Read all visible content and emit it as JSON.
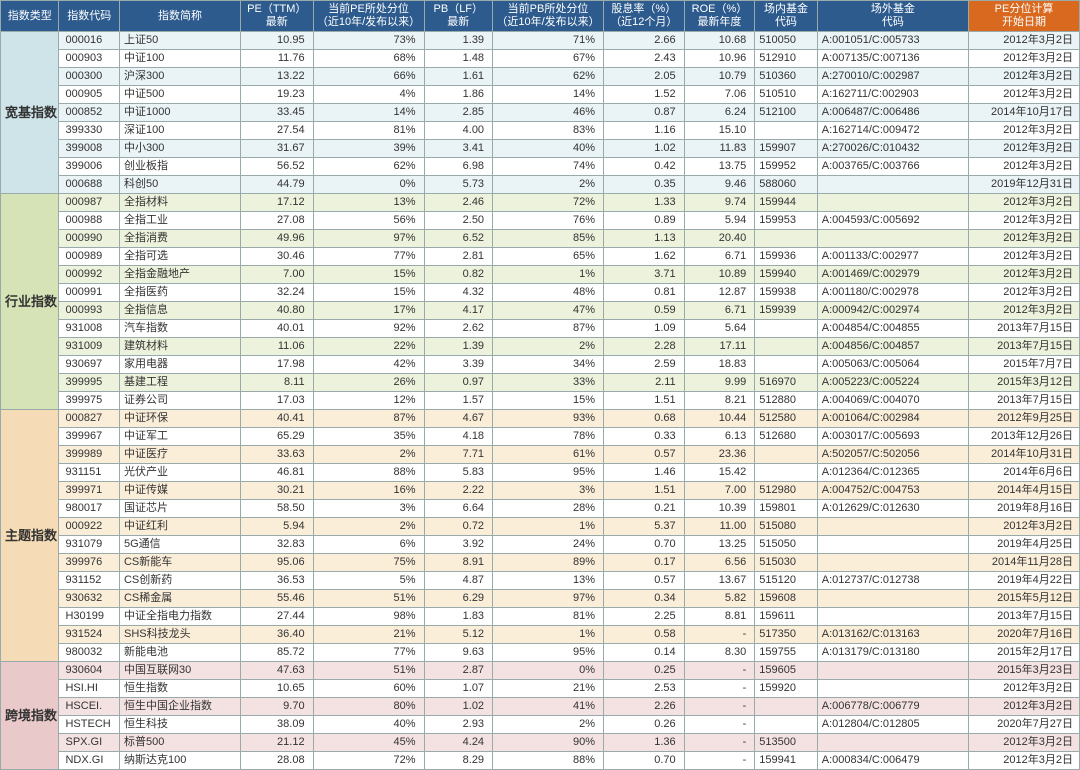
{
  "header": {
    "labels": [
      "指数类型",
      "指数代码",
      "指数简称",
      "PE（TTM）\n最新",
      "当前PE所处分位\n（近10年/发布以来）",
      "PB（LF）\n最新",
      "当前PB所处分位\n（近10年/发布以来）",
      "股息率（%）\n（近12个月）",
      "ROE（%）\n最新年度",
      "场内基金\n代码",
      "场外基金\n代码",
      "PE分位计算\n开始日期"
    ],
    "orange_index": 11
  },
  "categories": [
    {
      "key": "broad",
      "label": "宽基指数",
      "cat_class": "cat-broad",
      "row_e": "r-broad-e",
      "row_o": "r-broad-o"
    },
    {
      "key": "sector",
      "label": "行业指数",
      "cat_class": "cat-sector",
      "row_e": "r-sector-e",
      "row_o": "r-sector-o"
    },
    {
      "key": "theme",
      "label": "主题指数",
      "cat_class": "cat-theme",
      "row_e": "r-theme-e",
      "row_o": "r-theme-o"
    },
    {
      "key": "cross",
      "label": "跨境指数",
      "cat_class": "cat-cross",
      "row_e": "r-cross-e",
      "row_o": "r-cross-o"
    }
  ],
  "rows": {
    "broad": [
      {
        "code": "000016",
        "name": "上证50",
        "pe": "10.95",
        "pe_pct": "73%",
        "pb": "1.39",
        "pb_pct": "71%",
        "div": "2.66",
        "roe": "10.68",
        "on": "510050",
        "off": "A:001051/C:005733",
        "date": "2012年3月2日"
      },
      {
        "code": "000903",
        "name": "中证100",
        "pe": "11.76",
        "pe_pct": "68%",
        "pb": "1.48",
        "pb_pct": "67%",
        "div": "2.43",
        "roe": "10.96",
        "on": "512910",
        "off": "A:007135/C:007136",
        "date": "2012年3月2日"
      },
      {
        "code": "000300",
        "name": "沪深300",
        "pe": "13.22",
        "pe_pct": "66%",
        "pb": "1.61",
        "pb_pct": "62%",
        "div": "2.05",
        "roe": "10.79",
        "on": "510360",
        "off": "A:270010/C:002987",
        "date": "2012年3月2日"
      },
      {
        "code": "000905",
        "name": "中证500",
        "pe": "19.23",
        "pe_pct": "4%",
        "pb": "1.86",
        "pb_pct": "14%",
        "div": "1.52",
        "roe": "7.06",
        "on": "510510",
        "off": "A:162711/C:002903",
        "date": "2012年3月2日"
      },
      {
        "code": "000852",
        "name": "中证1000",
        "pe": "33.45",
        "pe_pct": "14%",
        "pb": "2.85",
        "pb_pct": "46%",
        "div": "0.87",
        "roe": "6.24",
        "on": "512100",
        "off": "A:006487/C:006486",
        "date": "2014年10月17日"
      },
      {
        "code": "399330",
        "name": "深证100",
        "pe": "27.54",
        "pe_pct": "81%",
        "pb": "4.00",
        "pb_pct": "83%",
        "div": "1.16",
        "roe": "15.10",
        "on": "",
        "off": "A:162714/C:009472",
        "date": "2012年3月2日"
      },
      {
        "code": "399008",
        "name": "中小300",
        "pe": "31.67",
        "pe_pct": "39%",
        "pb": "3.41",
        "pb_pct": "40%",
        "div": "1.02",
        "roe": "11.83",
        "on": "159907",
        "off": "A:270026/C:010432",
        "date": "2012年3月2日"
      },
      {
        "code": "399006",
        "name": "创业板指",
        "pe": "56.52",
        "pe_pct": "62%",
        "pb": "6.98",
        "pb_pct": "74%",
        "div": "0.42",
        "roe": "13.75",
        "on": "159952",
        "off": "A:003765/C:003766",
        "date": "2012年3月2日"
      },
      {
        "code": "000688",
        "name": "科创50",
        "pe": "44.79",
        "pe_pct": "0%",
        "pb": "5.73",
        "pb_pct": "2%",
        "div": "0.35",
        "roe": "9.46",
        "on": "588060",
        "off": "",
        "date": "2019年12月31日"
      }
    ],
    "sector": [
      {
        "code": "000987",
        "name": "全指材料",
        "pe": "17.12",
        "pe_pct": "13%",
        "pb": "2.46",
        "pb_pct": "72%",
        "div": "1.33",
        "roe": "9.74",
        "on": "159944",
        "off": "",
        "date": "2012年3月2日"
      },
      {
        "code": "000988",
        "name": "全指工业",
        "pe": "27.08",
        "pe_pct": "56%",
        "pb": "2.50",
        "pb_pct": "76%",
        "div": "0.89",
        "roe": "5.94",
        "on": "159953",
        "off": "A:004593/C:005692",
        "date": "2012年3月2日"
      },
      {
        "code": "000990",
        "name": "全指消费",
        "pe": "49.96",
        "pe_pct": "97%",
        "pb": "6.52",
        "pb_pct": "85%",
        "div": "1.13",
        "roe": "20.40",
        "on": "",
        "off": "",
        "date": "2012年3月2日"
      },
      {
        "code": "000989",
        "name": "全指可选",
        "pe": "30.46",
        "pe_pct": "77%",
        "pb": "2.81",
        "pb_pct": "65%",
        "div": "1.62",
        "roe": "6.71",
        "on": "159936",
        "off": "A:001133/C:002977",
        "date": "2012年3月2日"
      },
      {
        "code": "000992",
        "name": "全指金融地产",
        "pe": "7.00",
        "pe_pct": "15%",
        "pb": "0.82",
        "pb_pct": "1%",
        "div": "3.71",
        "roe": "10.89",
        "on": "159940",
        "off": "A:001469/C:002979",
        "date": "2012年3月2日"
      },
      {
        "code": "000991",
        "name": "全指医药",
        "pe": "32.24",
        "pe_pct": "15%",
        "pb": "4.32",
        "pb_pct": "48%",
        "div": "0.81",
        "roe": "12.87",
        "on": "159938",
        "off": "A:001180/C:002978",
        "date": "2012年3月2日"
      },
      {
        "code": "000993",
        "name": "全指信息",
        "pe": "40.80",
        "pe_pct": "17%",
        "pb": "4.17",
        "pb_pct": "47%",
        "div": "0.59",
        "roe": "6.71",
        "on": "159939",
        "off": "A:000942/C:002974",
        "date": "2012年3月2日"
      },
      {
        "code": "931008",
        "name": "汽车指数",
        "pe": "40.01",
        "pe_pct": "92%",
        "pb": "2.62",
        "pb_pct": "87%",
        "div": "1.09",
        "roe": "5.64",
        "on": "",
        "off": "A:004854/C:004855",
        "date": "2013年7月15日"
      },
      {
        "code": "931009",
        "name": "建筑材料",
        "pe": "11.06",
        "pe_pct": "22%",
        "pb": "1.39",
        "pb_pct": "2%",
        "div": "2.28",
        "roe": "17.11",
        "on": "",
        "off": "A:004856/C:004857",
        "date": "2013年7月15日"
      },
      {
        "code": "930697",
        "name": "家用电器",
        "pe": "17.98",
        "pe_pct": "42%",
        "pb": "3.39",
        "pb_pct": "34%",
        "div": "2.59",
        "roe": "18.83",
        "on": "",
        "off": "A:005063/C:005064",
        "date": "2015年7月7日"
      },
      {
        "code": "399995",
        "name": "基建工程",
        "pe": "8.11",
        "pe_pct": "26%",
        "pb": "0.97",
        "pb_pct": "33%",
        "div": "2.11",
        "roe": "9.99",
        "on": "516970",
        "off": "A:005223/C:005224",
        "date": "2015年3月12日"
      },
      {
        "code": "399975",
        "name": "证券公司",
        "pe": "17.03",
        "pe_pct": "12%",
        "pb": "1.57",
        "pb_pct": "15%",
        "div": "1.51",
        "roe": "8.21",
        "on": "512880",
        "off": "A:004069/C:004070",
        "date": "2013年7月15日"
      }
    ],
    "theme": [
      {
        "code": "000827",
        "name": "中证环保",
        "pe": "40.41",
        "pe_pct": "87%",
        "pb": "4.67",
        "pb_pct": "93%",
        "div": "0.68",
        "roe": "10.44",
        "on": "512580",
        "off": "A:001064/C:002984",
        "date": "2012年9月25日"
      },
      {
        "code": "399967",
        "name": "中证军工",
        "pe": "65.29",
        "pe_pct": "35%",
        "pb": "4.18",
        "pb_pct": "78%",
        "div": "0.33",
        "roe": "6.13",
        "on": "512680",
        "off": "A:003017/C:005693",
        "date": "2013年12月26日"
      },
      {
        "code": "399989",
        "name": "中证医疗",
        "pe": "33.63",
        "pe_pct": "2%",
        "pb": "7.71",
        "pb_pct": "61%",
        "div": "0.57",
        "roe": "23.36",
        "on": "",
        "off": "A:502057/C:502056",
        "date": "2014年10月31日"
      },
      {
        "code": "931151",
        "name": "光伏产业",
        "pe": "46.81",
        "pe_pct": "88%",
        "pb": "5.83",
        "pb_pct": "95%",
        "div": "1.46",
        "roe": "15.42",
        "on": "",
        "off": "A:012364/C:012365",
        "date": "2014年6月6日"
      },
      {
        "code": "399971",
        "name": "中证传媒",
        "pe": "30.21",
        "pe_pct": "16%",
        "pb": "2.22",
        "pb_pct": "3%",
        "div": "1.51",
        "roe": "7.00",
        "on": "512980",
        "off": "A:004752/C:004753",
        "date": "2014年4月15日"
      },
      {
        "code": "980017",
        "name": "国证芯片",
        "pe": "58.50",
        "pe_pct": "3%",
        "pb": "6.64",
        "pb_pct": "28%",
        "div": "0.21",
        "roe": "10.39",
        "on": "159801",
        "off": "A:012629/C:012630",
        "date": "2019年8月16日"
      },
      {
        "code": "000922",
        "name": "中证红利",
        "pe": "5.94",
        "pe_pct": "2%",
        "pb": "0.72",
        "pb_pct": "1%",
        "div": "5.37",
        "roe": "11.00",
        "on": "515080",
        "off": "",
        "date": "2012年3月2日"
      },
      {
        "code": "931079",
        "name": "5G通信",
        "pe": "32.83",
        "pe_pct": "6%",
        "pb": "3.92",
        "pb_pct": "24%",
        "div": "0.70",
        "roe": "13.25",
        "on": "515050",
        "off": "",
        "date": "2019年4月25日"
      },
      {
        "code": "399976",
        "name": "CS新能车",
        "pe": "95.06",
        "pe_pct": "75%",
        "pb": "8.91",
        "pb_pct": "89%",
        "div": "0.17",
        "roe": "6.56",
        "on": "515030",
        "off": "",
        "date": "2014年11月28日"
      },
      {
        "code": "931152",
        "name": "CS创新药",
        "pe": "36.53",
        "pe_pct": "5%",
        "pb": "4.87",
        "pb_pct": "13%",
        "div": "0.57",
        "roe": "13.67",
        "on": "515120",
        "off": "A:012737/C:012738",
        "date": "2019年4月22日"
      },
      {
        "code": "930632",
        "name": "CS稀金属",
        "pe": "55.46",
        "pe_pct": "51%",
        "pb": "6.29",
        "pb_pct": "97%",
        "div": "0.34",
        "roe": "5.82",
        "on": "159608",
        "off": "",
        "date": "2015年5月12日"
      },
      {
        "code": "H30199",
        "name": "中证全指电力指数",
        "pe": "27.44",
        "pe_pct": "98%",
        "pb": "1.83",
        "pb_pct": "81%",
        "div": "2.25",
        "roe": "8.81",
        "on": "159611",
        "off": "",
        "date": "2013年7月15日"
      },
      {
        "code": "931524",
        "name": "SHS科技龙头",
        "pe": "36.40",
        "pe_pct": "21%",
        "pb": "5.12",
        "pb_pct": "1%",
        "div": "0.58",
        "roe": "-",
        "on": "517350",
        "off": "A:013162/C:013163",
        "date": "2020年7月16日"
      },
      {
        "code": "980032",
        "name": "新能电池",
        "pe": "85.72",
        "pe_pct": "77%",
        "pb": "9.63",
        "pb_pct": "95%",
        "div": "0.14",
        "roe": "8.30",
        "on": "159755",
        "off": "A:013179/C:013180",
        "date": "2015年2月17日"
      }
    ],
    "cross": [
      {
        "code": "930604",
        "name": "中国互联网30",
        "pe": "47.63",
        "pe_pct": "51%",
        "pb": "2.87",
        "pb_pct": "0%",
        "div": "0.25",
        "roe": "-",
        "on": "159605",
        "off": "",
        "date": "2015年3月23日"
      },
      {
        "code": "HSI.HI",
        "name": "恒生指数",
        "pe": "10.65",
        "pe_pct": "60%",
        "pb": "1.07",
        "pb_pct": "21%",
        "div": "2.53",
        "roe": "-",
        "on": "159920",
        "off": "",
        "date": "2012年3月2日"
      },
      {
        "code": "HSCEI.",
        "name": "恒生中国企业指数",
        "pe": "9.70",
        "pe_pct": "80%",
        "pb": "1.02",
        "pb_pct": "41%",
        "div": "2.26",
        "roe": "-",
        "on": "",
        "off": "A:006778/C:006779",
        "date": "2012年3月2日"
      },
      {
        "code": "HSTECH",
        "name": "恒生科技",
        "pe": "38.09",
        "pe_pct": "40%",
        "pb": "2.93",
        "pb_pct": "2%",
        "div": "0.26",
        "roe": "-",
        "on": "",
        "off": "A:012804/C:012805",
        "date": "2020年7月27日"
      },
      {
        "code": "SPX.GI",
        "name": "标普500",
        "pe": "21.12",
        "pe_pct": "45%",
        "pb": "4.24",
        "pb_pct": "90%",
        "div": "1.36",
        "roe": "-",
        "on": "513500",
        "off": "",
        "date": "2012年3月2日"
      },
      {
        "code": "NDX.GI",
        "name": "纳斯达克100",
        "pe": "28.08",
        "pe_pct": "72%",
        "pb": "8.29",
        "pb_pct": "88%",
        "div": "0.70",
        "roe": "-",
        "on": "159941",
        "off": "A:000834/C:006479",
        "date": "2012年3月2日"
      }
    ]
  }
}
